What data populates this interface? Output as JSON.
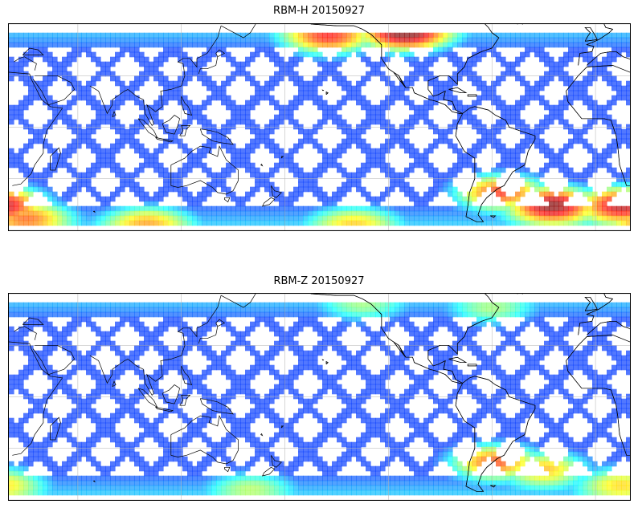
{
  "figure": {
    "panels": [
      {
        "id": "top",
        "title": "RBM-H 20150927",
        "colormap": "jet",
        "hotspots": [
          {
            "lon": -155,
            "lat": 52,
            "level": 0.78
          },
          {
            "lon": -110,
            "lat": 54,
            "level": 0.92
          },
          {
            "lon": -55,
            "lat": -38,
            "level": 0.85
          },
          {
            "lon": -25,
            "lat": -45,
            "level": 1.0
          },
          {
            "lon": 15,
            "lat": -45,
            "level": 0.95
          },
          {
            "lon": 30,
            "lat": -52,
            "level": 0.7
          },
          {
            "lon": 100,
            "lat": -55,
            "level": 0.6
          },
          {
            "lon": -140,
            "lat": -55,
            "level": 0.55
          }
        ]
      },
      {
        "id": "bottom",
        "title": "RBM-Z 20150927",
        "colormap": "jet",
        "hotspots": [
          {
            "lon": -58,
            "lat": -38,
            "level": 0.82
          },
          {
            "lon": -30,
            "lat": -42,
            "level": 0.7
          },
          {
            "lon": 15,
            "lat": -50,
            "level": 0.6
          },
          {
            "lon": 160,
            "lat": -52,
            "level": 0.45
          },
          {
            "lon": -135,
            "lat": 52,
            "level": 0.42
          },
          {
            "lon": -60,
            "lat": 50,
            "level": 0.45
          }
        ]
      }
    ],
    "map": {
      "lon_range": [
        20,
        380
      ],
      "lat_range": [
        -60,
        60
      ],
      "data_lat_range": [
        -55,
        55
      ],
      "projection": "cylindrical",
      "gridlines": true,
      "base_level": 0.18,
      "swath_color": "#6a6af0",
      "background": "#ffffff",
      "coastline_color": "#000000"
    }
  }
}
